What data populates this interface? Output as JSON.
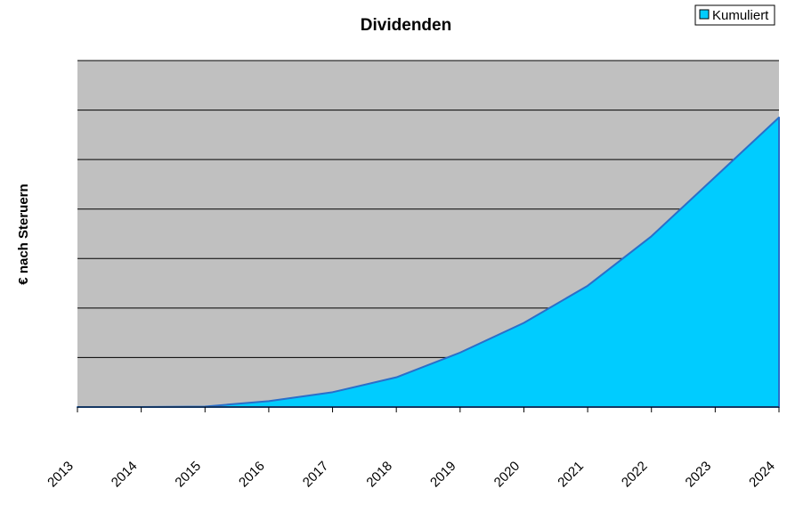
{
  "chart_data": {
    "type": "area",
    "title": "Dividenden",
    "ylabel": "€ nach Steruern",
    "xlabel": "",
    "x": [
      "2013",
      "2014",
      "2015",
      "2016",
      "2017",
      "2018",
      "2019",
      "2020",
      "2021",
      "2022",
      "2023",
      "2024"
    ],
    "series": [
      {
        "name": "Kumuliert",
        "values": [
          0,
          0,
          0.1,
          1.2,
          3.0,
          6.0,
          11.0,
          17.0,
          24.5,
          34.5,
          46.5,
          58.5
        ]
      }
    ],
    "ylim": [
      0,
      70
    ],
    "y_grid_step": 10,
    "grid": true,
    "legend": "top-right",
    "colors": {
      "plot_background": "#c0c0c0",
      "area_fill": "#00ccff",
      "area_line": "#2a6fc9",
      "gridline": "#000000"
    }
  }
}
